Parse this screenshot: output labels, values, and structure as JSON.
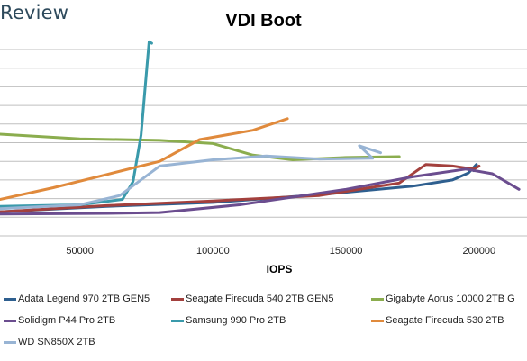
{
  "brand": "Review",
  "chart_data": {
    "type": "line",
    "title": "VDI Boot",
    "xlabel": "IOPS",
    "ylabel": "",
    "xlim": [
      20000,
      218000
    ],
    "ylim": [
      0,
      12
    ],
    "x_ticks": [
      50000,
      100000,
      150000,
      200000
    ],
    "x_tick_labels": [
      "50000",
      "100000",
      "150000",
      "200000"
    ],
    "grid": true,
    "legend_position": "bottom",
    "series": [
      {
        "name": "Adata Legend 970 2TB GEN5",
        "color": "#2e5f8f",
        "points": [
          [
            20000,
            1.55
          ],
          [
            60000,
            1.9
          ],
          [
            100000,
            2.15
          ],
          [
            140000,
            2.65
          ],
          [
            175000,
            3.2
          ],
          [
            190000,
            3.6
          ],
          [
            196000,
            4.05
          ],
          [
            199000,
            4.6
          ],
          [
            198000,
            4.2
          ]
        ]
      },
      {
        "name": "Seagate Firecuda 540 2TB GEN5",
        "color": "#a3403d",
        "points": [
          [
            20000,
            1.55
          ],
          [
            60000,
            1.95
          ],
          [
            100000,
            2.25
          ],
          [
            140000,
            2.6
          ],
          [
            170000,
            3.4
          ],
          [
            180000,
            4.6
          ],
          [
            190000,
            4.5
          ],
          [
            198000,
            4.3
          ],
          [
            200000,
            4.5
          ]
        ]
      },
      {
        "name": "Gigabyte Aorus 10000 2TB G",
        "color": "#8bad4e",
        "points": [
          [
            20000,
            6.55
          ],
          [
            50000,
            6.25
          ],
          [
            80000,
            6.15
          ],
          [
            100000,
            5.95
          ],
          [
            115000,
            5.2
          ],
          [
            130000,
            4.9
          ],
          [
            150000,
            5.05
          ],
          [
            170000,
            5.1
          ]
        ]
      },
      {
        "name": "Solidigm P44 Pro 2TB",
        "color": "#6b4d8f",
        "points": [
          [
            20000,
            1.4
          ],
          [
            60000,
            1.45
          ],
          [
            80000,
            1.5
          ],
          [
            110000,
            2.0
          ],
          [
            150000,
            3.0
          ],
          [
            175000,
            3.8
          ],
          [
            195000,
            4.3
          ],
          [
            205000,
            4.0
          ],
          [
            215000,
            3.0
          ]
        ]
      },
      {
        "name": "Samsung 990 Pro 2TB",
        "color": "#3a9aab",
        "points": [
          [
            20000,
            1.9
          ],
          [
            50000,
            2.0
          ],
          [
            66000,
            2.35
          ],
          [
            70000,
            3.5
          ],
          [
            73000,
            6.5
          ],
          [
            75000,
            10.5
          ],
          [
            76000,
            12.5
          ],
          [
            77000,
            12.4
          ]
        ]
      },
      {
        "name": "Seagate Firecuda 530 2TB",
        "color": "#e08a3c",
        "points": [
          [
            20000,
            2.35
          ],
          [
            40000,
            3.1
          ],
          [
            60000,
            3.95
          ],
          [
            80000,
            4.8
          ],
          [
            95000,
            6.2
          ],
          [
            115000,
            6.8
          ],
          [
            128000,
            7.55
          ]
        ]
      },
      {
        "name": "WD SN850X 2TB",
        "color": "#98b4d4",
        "points": [
          [
            20000,
            1.75
          ],
          [
            50000,
            2.0
          ],
          [
            65000,
            2.6
          ],
          [
            80000,
            4.5
          ],
          [
            100000,
            4.9
          ],
          [
            120000,
            5.15
          ],
          [
            140000,
            4.95
          ],
          [
            160000,
            5.0
          ],
          [
            155000,
            5.8
          ],
          [
            163000,
            5.35
          ]
        ]
      }
    ]
  }
}
